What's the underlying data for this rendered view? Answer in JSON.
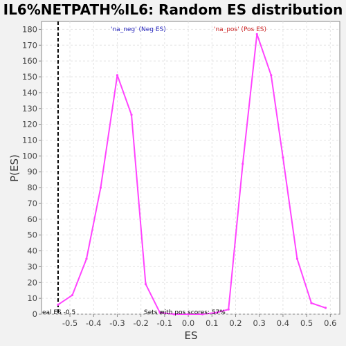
{
  "chart_data": {
    "type": "line",
    "title": "IL6%NETPATH%IL6: Random ES distribution",
    "xlabel": "ES",
    "ylabel": "P(ES)",
    "xlim": [
      -0.62,
      0.64
    ],
    "ylim": [
      0,
      185
    ],
    "x_ticks": [
      "-0.5",
      "-0.4",
      "-0.3",
      "-0.2",
      "-0.1",
      "0.0",
      "0.1",
      "0.2",
      "0.3",
      "0.4",
      "0.5",
      "0.6"
    ],
    "y_ticks": [
      "0",
      "10",
      "20",
      "30",
      "40",
      "50",
      "60",
      "70",
      "80",
      "90",
      "100",
      "110",
      "120",
      "130",
      "140",
      "150",
      "160",
      "170",
      "180"
    ],
    "grid": true,
    "series": [
      {
        "color": "#ff44ff",
        "x": [
          -0.55,
          -0.49,
          -0.43,
          -0.37,
          -0.3,
          -0.24,
          -0.18,
          -0.12,
          -0.06,
          0.0,
          0.06,
          0.12,
          0.17,
          0.23,
          0.29,
          0.35,
          0.4,
          0.46,
          0.52,
          0.58
        ],
        "y": [
          6,
          12,
          35,
          80,
          151,
          126,
          19,
          1,
          0,
          0,
          0,
          1,
          3,
          95,
          177,
          151,
          99,
          35,
          7,
          4
        ]
      }
    ],
    "annotations": {
      "neg_label": "'na_neg' (Neg ES)",
      "pos_label": "'na_pos' (Pos ES)",
      "neg_color": "#2222bb",
      "pos_color": "#cc2222",
      "real_es_label": "eal ES -0.5",
      "real_es_value": -0.55,
      "pos_scores_label": "Sets with pos scores: 57%"
    }
  }
}
